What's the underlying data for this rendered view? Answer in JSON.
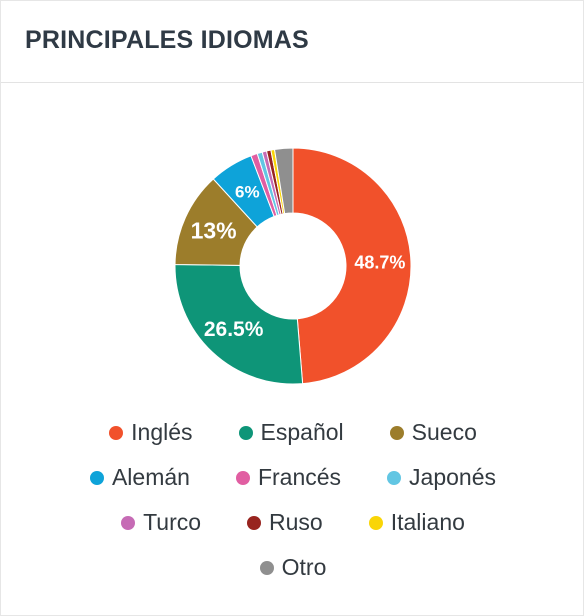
{
  "header": {
    "title": "PRINCIPALES IDIOMAS"
  },
  "chart_data": {
    "type": "pie",
    "variant": "donut",
    "title": "PRINCIPALES IDIOMAS",
    "legend_position": "bottom",
    "slices": [
      {
        "name": "Inglés",
        "value": 48.7,
        "label": "48.7%",
        "color": "#f1512b"
      },
      {
        "name": "Español",
        "value": 26.5,
        "label": "26.5%",
        "color": "#0e9578"
      },
      {
        "name": "Sueco",
        "value": 13.0,
        "label": "13%",
        "color": "#9c7d2b"
      },
      {
        "name": "Alemán",
        "value": 6.0,
        "label": "6%",
        "color": "#0ea3d9"
      },
      {
        "name": "Francés",
        "value": 0.9,
        "label": "",
        "color": "#e15ea2"
      },
      {
        "name": "Japonés",
        "value": 0.7,
        "label": "",
        "color": "#62c6e3"
      },
      {
        "name": "Turco",
        "value": 0.6,
        "label": "",
        "color": "#c66bb5"
      },
      {
        "name": "Ruso",
        "value": 0.6,
        "label": "",
        "color": "#98241f"
      },
      {
        "name": "Italiano",
        "value": 0.5,
        "label": "",
        "color": "#f9d507"
      },
      {
        "name": "Otro",
        "value": 2.5,
        "label": "",
        "color": "#8f8f8f"
      }
    ]
  }
}
